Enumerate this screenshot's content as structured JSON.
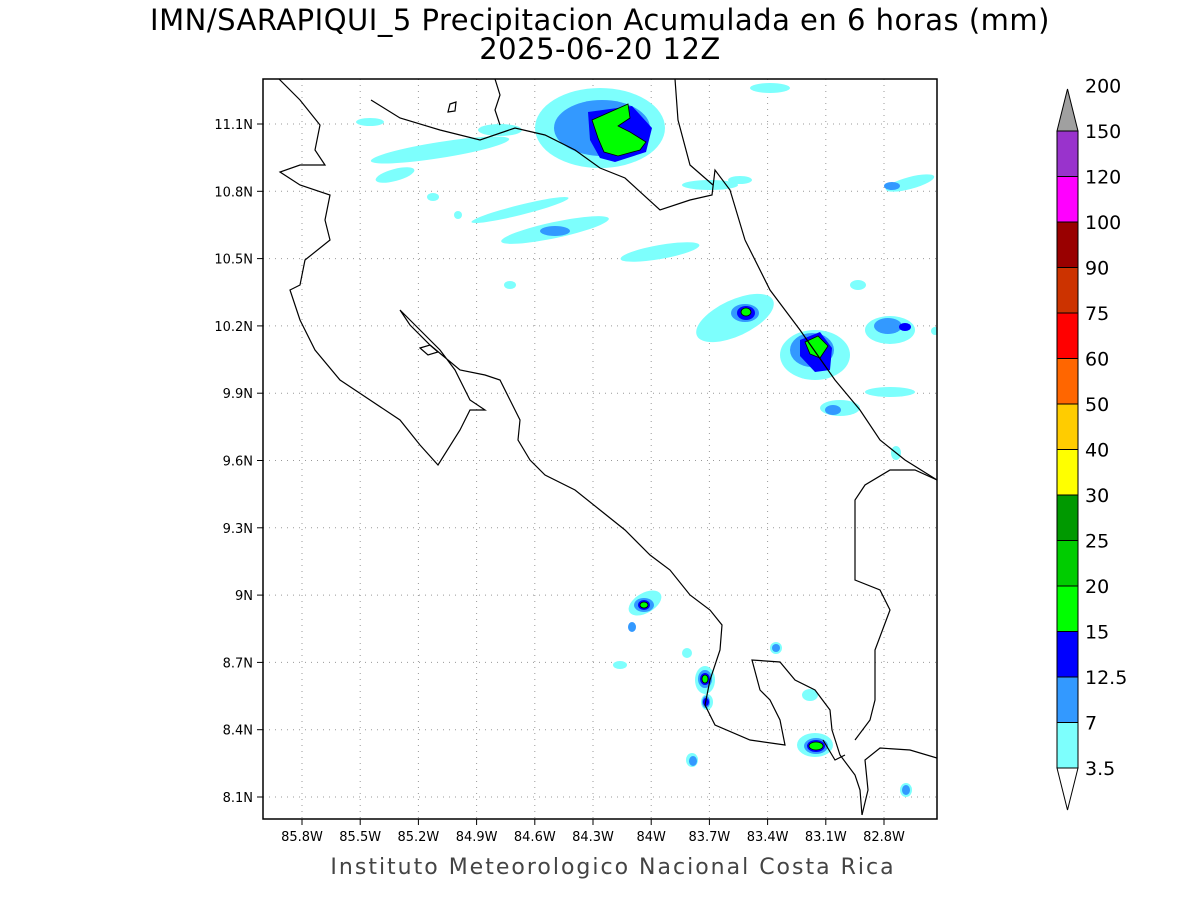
{
  "header": {
    "title": "IMN/SARAPIQUI_5 Precipitacion Acumulada en 6 horas (mm)",
    "subtitle": "2025-06-20 12Z"
  },
  "footer": {
    "credit": "Instituto Meteorologico Nacional Costa Rica"
  },
  "map": {
    "region": "Costa Rica",
    "variable": "6-hour accumulated precipitation",
    "units": "mm",
    "lat_ticks": [
      "11.1N",
      "10.8N",
      "10.5N",
      "10.2N",
      "9.9N",
      "9.6N",
      "9.3N",
      "9N",
      "8.7N",
      "8.4N",
      "8.1N"
    ],
    "lon_ticks": [
      "85.8W",
      "85.5W",
      "85.2W",
      "84.9W",
      "84.6W",
      "84.3W",
      "84W",
      "83.7W",
      "83.4W",
      "83.1W",
      "82.8W"
    ],
    "grid": "dotted",
    "colorbar": {
      "placement": "right",
      "labels": [
        "3.5",
        "7",
        "12.5",
        "15",
        "20",
        "25",
        "30",
        "40",
        "50",
        "60",
        "75",
        "90",
        "100",
        "120",
        "150",
        "200"
      ],
      "colors": [
        "#7dfffd",
        "#3399ff",
        "#0000ff",
        "#00ff00",
        "#00cc00",
        "#009900",
        "#ffff00",
        "#ffcc00",
        "#ff6600",
        "#ff0000",
        "#cc3300",
        "#990000",
        "#ff00ff",
        "#9933cc",
        "#f2f2f2",
        "#a0a0a0"
      ]
    }
  }
}
